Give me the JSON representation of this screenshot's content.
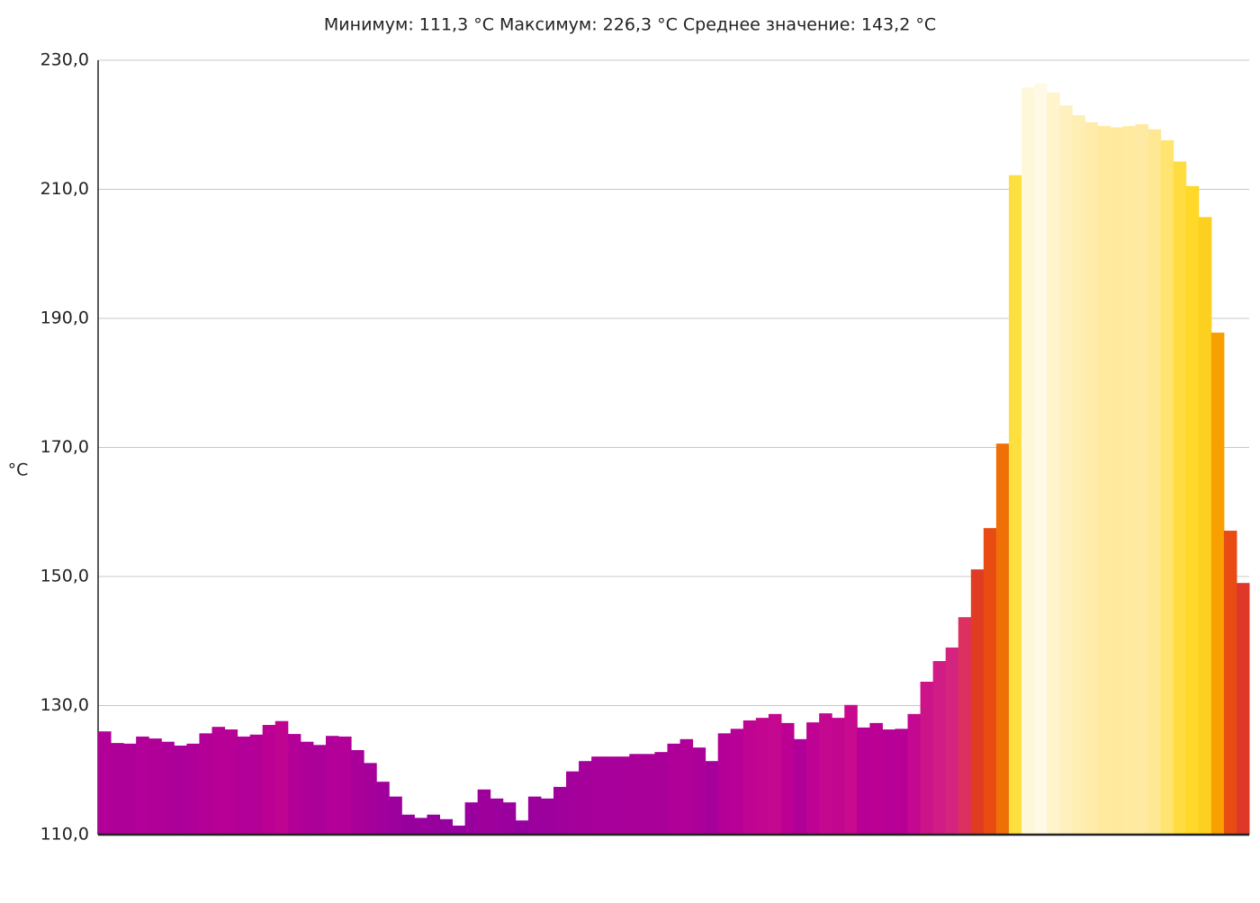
{
  "chart_data": {
    "type": "bar",
    "title": "Минимум:  111,3  °C Максимум:  226,3  °C Среднее  значение:  143,2  °C",
    "y_label": "°C",
    "categories": [
      null,
      null,
      null,
      null,
      null,
      null,
      null,
      null,
      null,
      null,
      null,
      null,
      null,
      null,
      null,
      null,
      null,
      null,
      null,
      null,
      null,
      null,
      null,
      null,
      null,
      null,
      null,
      null,
      null,
      null,
      null,
      null,
      null,
      null,
      null,
      null,
      null,
      null,
      null,
      null,
      null,
      null,
      null,
      null,
      null,
      null,
      null,
      null,
      null,
      null,
      null,
      null,
      null,
      null,
      null,
      null,
      null,
      null,
      null,
      null,
      null,
      null,
      null,
      null,
      null,
      null,
      null,
      null,
      null,
      null,
      null,
      null,
      null,
      null,
      null,
      null,
      null,
      null,
      null,
      null,
      null,
      null,
      null,
      null,
      null,
      null,
      null,
      null,
      null,
      null,
      null
    ],
    "values": [
      126.0,
      124.2,
      124.1,
      125.2,
      124.9,
      124.4,
      123.8,
      124.1,
      125.7,
      126.7,
      126.3,
      125.2,
      125.5,
      127.0,
      127.6,
      125.6,
      124.4,
      123.9,
      125.3,
      125.2,
      123.1,
      121.1,
      118.2,
      115.9,
      113.1,
      112.6,
      113.1,
      112.4,
      111.4,
      115.0,
      117.0,
      115.6,
      115.0,
      112.2,
      115.9,
      115.6,
      117.4,
      119.8,
      121.4,
      122.1,
      122.1,
      122.1,
      122.5,
      122.5,
      122.8,
      124.1,
      124.8,
      123.5,
      121.4,
      125.7,
      126.4,
      127.7,
      128.1,
      128.7,
      127.3,
      124.8,
      127.4,
      128.8,
      128.1,
      130.1,
      126.6,
      127.3,
      126.3,
      126.4,
      128.7,
      133.7,
      136.9,
      139.0,
      143.7,
      151.1,
      157.5,
      170.6,
      212.2,
      225.8,
      226.4,
      225.0,
      223.0,
      221.5,
      220.4,
      219.8,
      219.6,
      219.8,
      220.1,
      219.3,
      217.6,
      214.3,
      210.5,
      205.7,
      187.8,
      157.1,
      149.0
    ],
    "colors": [
      "#b20098",
      "#ae0099",
      "#ae0099",
      "#b20098",
      "#b00098",
      "#ae0099",
      "#ac009a",
      "#ae0099",
      "#b40097",
      "#b80096",
      "#b60096",
      "#b20098",
      "#b40097",
      "#bc0094",
      "#c00492",
      "#b40097",
      "#ae0099",
      "#ac009a",
      "#b20098",
      "#b20098",
      "#aa009a",
      "#a6009b",
      "#a0009c",
      "#9c009d",
      "#98009e",
      "#98009e",
      "#98009e",
      "#96009f",
      "#96009f",
      "#9a009d",
      "#9e009c",
      "#9c009d",
      "#9a009d",
      "#96009f",
      "#9c009d",
      "#9c009d",
      "#a0009c",
      "#a4009b",
      "#a6009b",
      "#a8009a",
      "#a8009a",
      "#a8009a",
      "#aa009a",
      "#aa009a",
      "#aa009a",
      "#ae0099",
      "#b00098",
      "#ac009a",
      "#a6009b",
      "#b40097",
      "#b80096",
      "#c00492",
      "#c20690",
      "#c40890",
      "#bc0094",
      "#b00098",
      "#be0294",
      "#c40890",
      "#c20690",
      "#c80a8e",
      "#b80096",
      "#bc0094",
      "#b60096",
      "#b80096",
      "#c40890",
      "#cc1488",
      "#d01c84",
      "#d42480",
      "#dc3060",
      "#e03c24",
      "#e84c12",
      "#f07008",
      "#fde040",
      "#fff8d8",
      "#fffae6",
      "#fff4cc",
      "#fff0c0",
      "#ffeeb4",
      "#ffecaa",
      "#ffeaa0",
      "#ffe99c",
      "#ffeaa0",
      "#ffeaa4",
      "#ffe894",
      "#ffe470",
      "#ffdc40",
      "#ffd828",
      "#fcd020",
      "#f8a000",
      "#e84c12",
      "#e03828"
    ],
    "ylim": [
      110,
      230
    ],
    "yticks": [
      {
        "value": 110,
        "label": "110,0"
      },
      {
        "value": 130,
        "label": "130,0"
      },
      {
        "value": 150,
        "label": "150,0"
      },
      {
        "value": 170,
        "label": "170,0"
      },
      {
        "value": 190,
        "label": "190,0"
      },
      {
        "value": 210,
        "label": "210,0"
      },
      {
        "value": 230,
        "label": "230,0"
      }
    ],
    "grid": true
  }
}
